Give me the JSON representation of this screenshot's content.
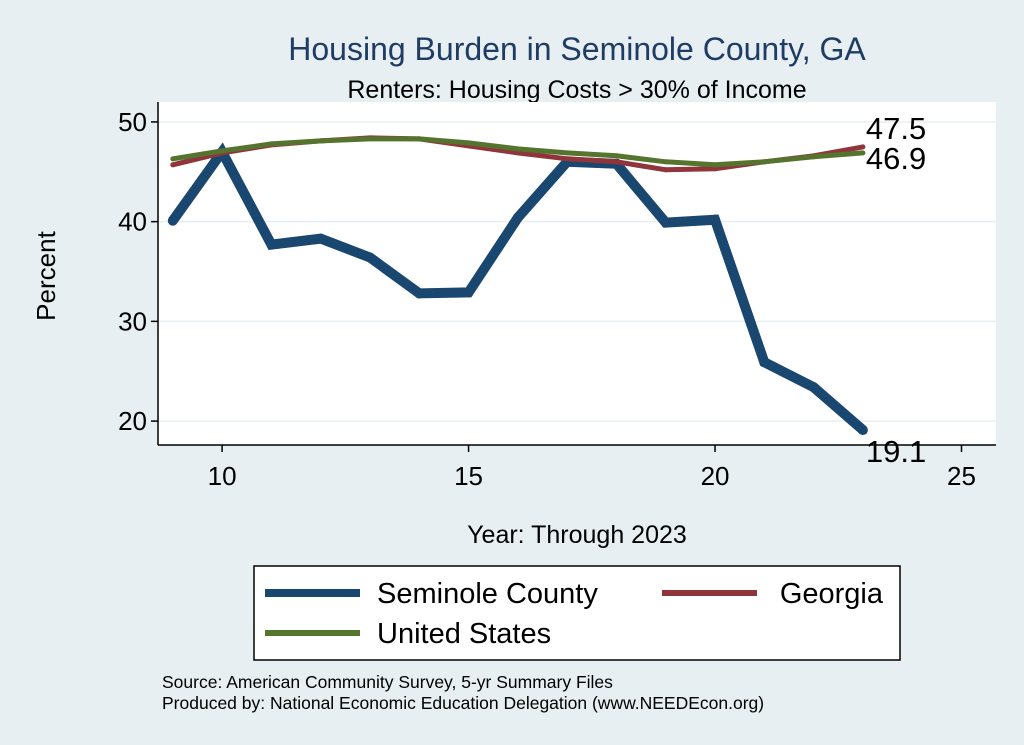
{
  "chart_data": {
    "type": "line",
    "title": "Housing Burden in Seminole County, GA",
    "subtitle": "Renters: Housing Costs > 30% of Income",
    "xlabel": "Year: Through 2023",
    "ylabel": "Percent",
    "xlim": [
      8.7,
      25.7
    ],
    "ylim": [
      17.6,
      52
    ],
    "xticks": [
      "10",
      "15",
      "20",
      "25"
    ],
    "yticks": [
      "20",
      "30",
      "40",
      "50"
    ],
    "grid": true,
    "legend_position": "bottom",
    "series": [
      {
        "name": "Seminole County",
        "color": "#1a476f",
        "x": [
          9,
          10,
          11,
          12,
          13,
          14,
          15,
          16,
          17,
          18,
          19,
          20,
          21,
          22,
          23
        ],
        "values": [
          40.1,
          47.0,
          37.7,
          38.3,
          36.4,
          32.8,
          32.9,
          40.4,
          46.0,
          45.8,
          39.9,
          40.2,
          25.9,
          23.4,
          19.1
        ]
      },
      {
        "name": "Georgia",
        "color": "#90353b",
        "x": [
          9,
          10,
          11,
          12,
          13,
          14,
          15,
          16,
          17,
          18,
          19,
          20,
          21,
          22,
          23
        ],
        "values": [
          45.7,
          46.9,
          47.7,
          48.1,
          48.4,
          48.3,
          47.6,
          46.9,
          46.3,
          46.0,
          45.2,
          45.3,
          46.0,
          46.6,
          47.5
        ]
      },
      {
        "name": "United States",
        "color": "#55752f",
        "x": [
          9,
          10,
          11,
          12,
          13,
          14,
          15,
          16,
          17,
          18,
          19,
          20,
          21,
          22,
          23
        ],
        "values": [
          46.3,
          47.1,
          47.8,
          48.1,
          48.3,
          48.3,
          47.9,
          47.3,
          46.9,
          46.6,
          46.0,
          45.7,
          46.0,
          46.5,
          46.9
        ]
      }
    ],
    "end_labels": [
      {
        "series": "Georgia",
        "text": "47.5"
      },
      {
        "series": "United States",
        "text": "46.9"
      },
      {
        "series": "Seminole County",
        "text": "19.1"
      }
    ]
  },
  "legend": {
    "items": [
      {
        "label": "Seminole County",
        "color": "#1a476f"
      },
      {
        "label": "Georgia",
        "color": "#90353b"
      },
      {
        "label": "United States",
        "color": "#55752f"
      }
    ]
  },
  "notes": {
    "source": "Source: American Community Survey, 5-yr Summary Files",
    "produced": "Produced by: National Economic Education Delegation (www.NEEDEcon.org)"
  }
}
